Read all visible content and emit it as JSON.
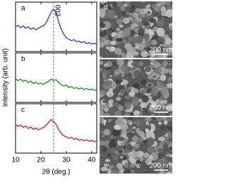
{
  "chart_data": [
    {
      "type": "line",
      "label": "a",
      "annotation": "002",
      "reference_x": 25,
      "x": [
        10,
        11,
        12,
        13,
        14,
        15,
        16,
        17,
        18,
        19,
        20,
        21,
        22,
        23,
        24,
        25,
        26,
        27,
        28,
        29,
        30,
        31,
        32,
        33,
        34,
        35,
        36,
        37,
        38,
        39,
        40,
        41,
        42
      ],
      "series": [
        {
          "color": "#1c3fe6",
          "values": [
            0.5,
            0.53,
            0.48,
            0.52,
            0.47,
            0.5,
            0.45,
            0.48,
            0.44,
            0.47,
            0.5,
            0.52,
            0.58,
            0.68,
            0.8,
            0.86,
            0.78,
            0.6,
            0.45,
            0.35,
            0.28,
            0.25,
            0.22,
            0.24,
            0.2,
            0.21,
            0.18,
            0.2,
            0.16,
            0.18,
            0.15,
            0.17,
            0.14
          ]
        }
      ],
      "xlim": [
        10,
        42
      ],
      "ylim": [
        0,
        1
      ],
      "xticks": [
        10,
        20,
        30,
        40
      ]
    },
    {
      "type": "line",
      "label": "b",
      "ylabel": "Intensity (arb. unit)",
      "reference_x": 25,
      "x": [
        10,
        11,
        12,
        13,
        14,
        15,
        16,
        17,
        18,
        19,
        20,
        21,
        22,
        23,
        24,
        25,
        26,
        27,
        28,
        29,
        30,
        31,
        32,
        33,
        34,
        35,
        36,
        37,
        38,
        39,
        40,
        41,
        42
      ],
      "series": [
        {
          "color": "#1a8c1a",
          "values": [
            0.48,
            0.44,
            0.47,
            0.42,
            0.45,
            0.4,
            0.43,
            0.38,
            0.41,
            0.37,
            0.39,
            0.36,
            0.4,
            0.42,
            0.47,
            0.44,
            0.46,
            0.4,
            0.36,
            0.33,
            0.35,
            0.3,
            0.32,
            0.28,
            0.3,
            0.27,
            0.29,
            0.26,
            0.28,
            0.25,
            0.27,
            0.24,
            0.26
          ]
        }
      ],
      "xlim": [
        10,
        42
      ],
      "ylim": [
        0,
        1
      ],
      "xticks": [
        10,
        20,
        30,
        40
      ]
    },
    {
      "type": "line",
      "label": "c",
      "xlabel": "2θ (deg.)",
      "reference_x": 25,
      "x": [
        10,
        11,
        12,
        13,
        14,
        15,
        16,
        17,
        18,
        19,
        20,
        21,
        22,
        23,
        24,
        25,
        26,
        27,
        28,
        29,
        30,
        31,
        32,
        33,
        34,
        35,
        36,
        37,
        38,
        39,
        40,
        41,
        42
      ],
      "series": [
        {
          "color": "#ee1515",
          "values": [
            0.58,
            0.54,
            0.57,
            0.52,
            0.55,
            0.5,
            0.53,
            0.48,
            0.51,
            0.47,
            0.5,
            0.52,
            0.56,
            0.62,
            0.68,
            0.64,
            0.58,
            0.48,
            0.4,
            0.35,
            0.33,
            0.3,
            0.32,
            0.28,
            0.3,
            0.26,
            0.28,
            0.25,
            0.27,
            0.24,
            0.26,
            0.23,
            0.25
          ]
        }
      ],
      "xlim": [
        10,
        42
      ],
      "ylim": [
        0,
        1
      ],
      "xticks": [
        10,
        20,
        30,
        40
      ]
    }
  ],
  "images": [
    {
      "label": "d",
      "scale_bar": "200 nm"
    },
    {
      "label": "e",
      "scale_bar": "200 nm"
    },
    {
      "label": "f",
      "scale_bar": "200 nm"
    }
  ]
}
